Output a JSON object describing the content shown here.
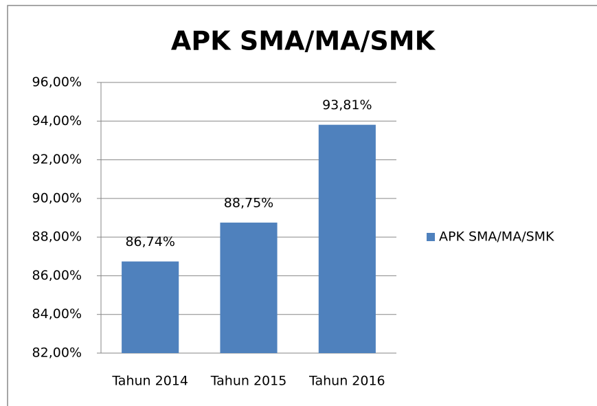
{
  "chart_data": {
    "type": "bar",
    "title": "APK SMA/MA/SMK",
    "categories": [
      "Tahun 2014",
      "Tahun 2015",
      "Tahun 2016"
    ],
    "series": [
      {
        "name": "APK SMA/MA/SMK",
        "color": "#4f81bd",
        "values": [
          86.74,
          88.75,
          93.81
        ],
        "value_labels": [
          "86,74%",
          "88,75%",
          "93,81%"
        ]
      }
    ],
    "ylim": [
      82,
      96
    ],
    "yticks": [
      {
        "value": 82,
        "label": "82,00%"
      },
      {
        "value": 84,
        "label": "84,00%"
      },
      {
        "value": 86,
        "label": "86,00%"
      },
      {
        "value": 88,
        "label": "88,00%"
      },
      {
        "value": 90,
        "label": "90,00%"
      },
      {
        "value": 92,
        "label": "92,00%"
      },
      {
        "value": 94,
        "label": "94,00%"
      },
      {
        "value": 96,
        "label": "96,00%"
      }
    ],
    "grid": true,
    "legend": "right"
  }
}
